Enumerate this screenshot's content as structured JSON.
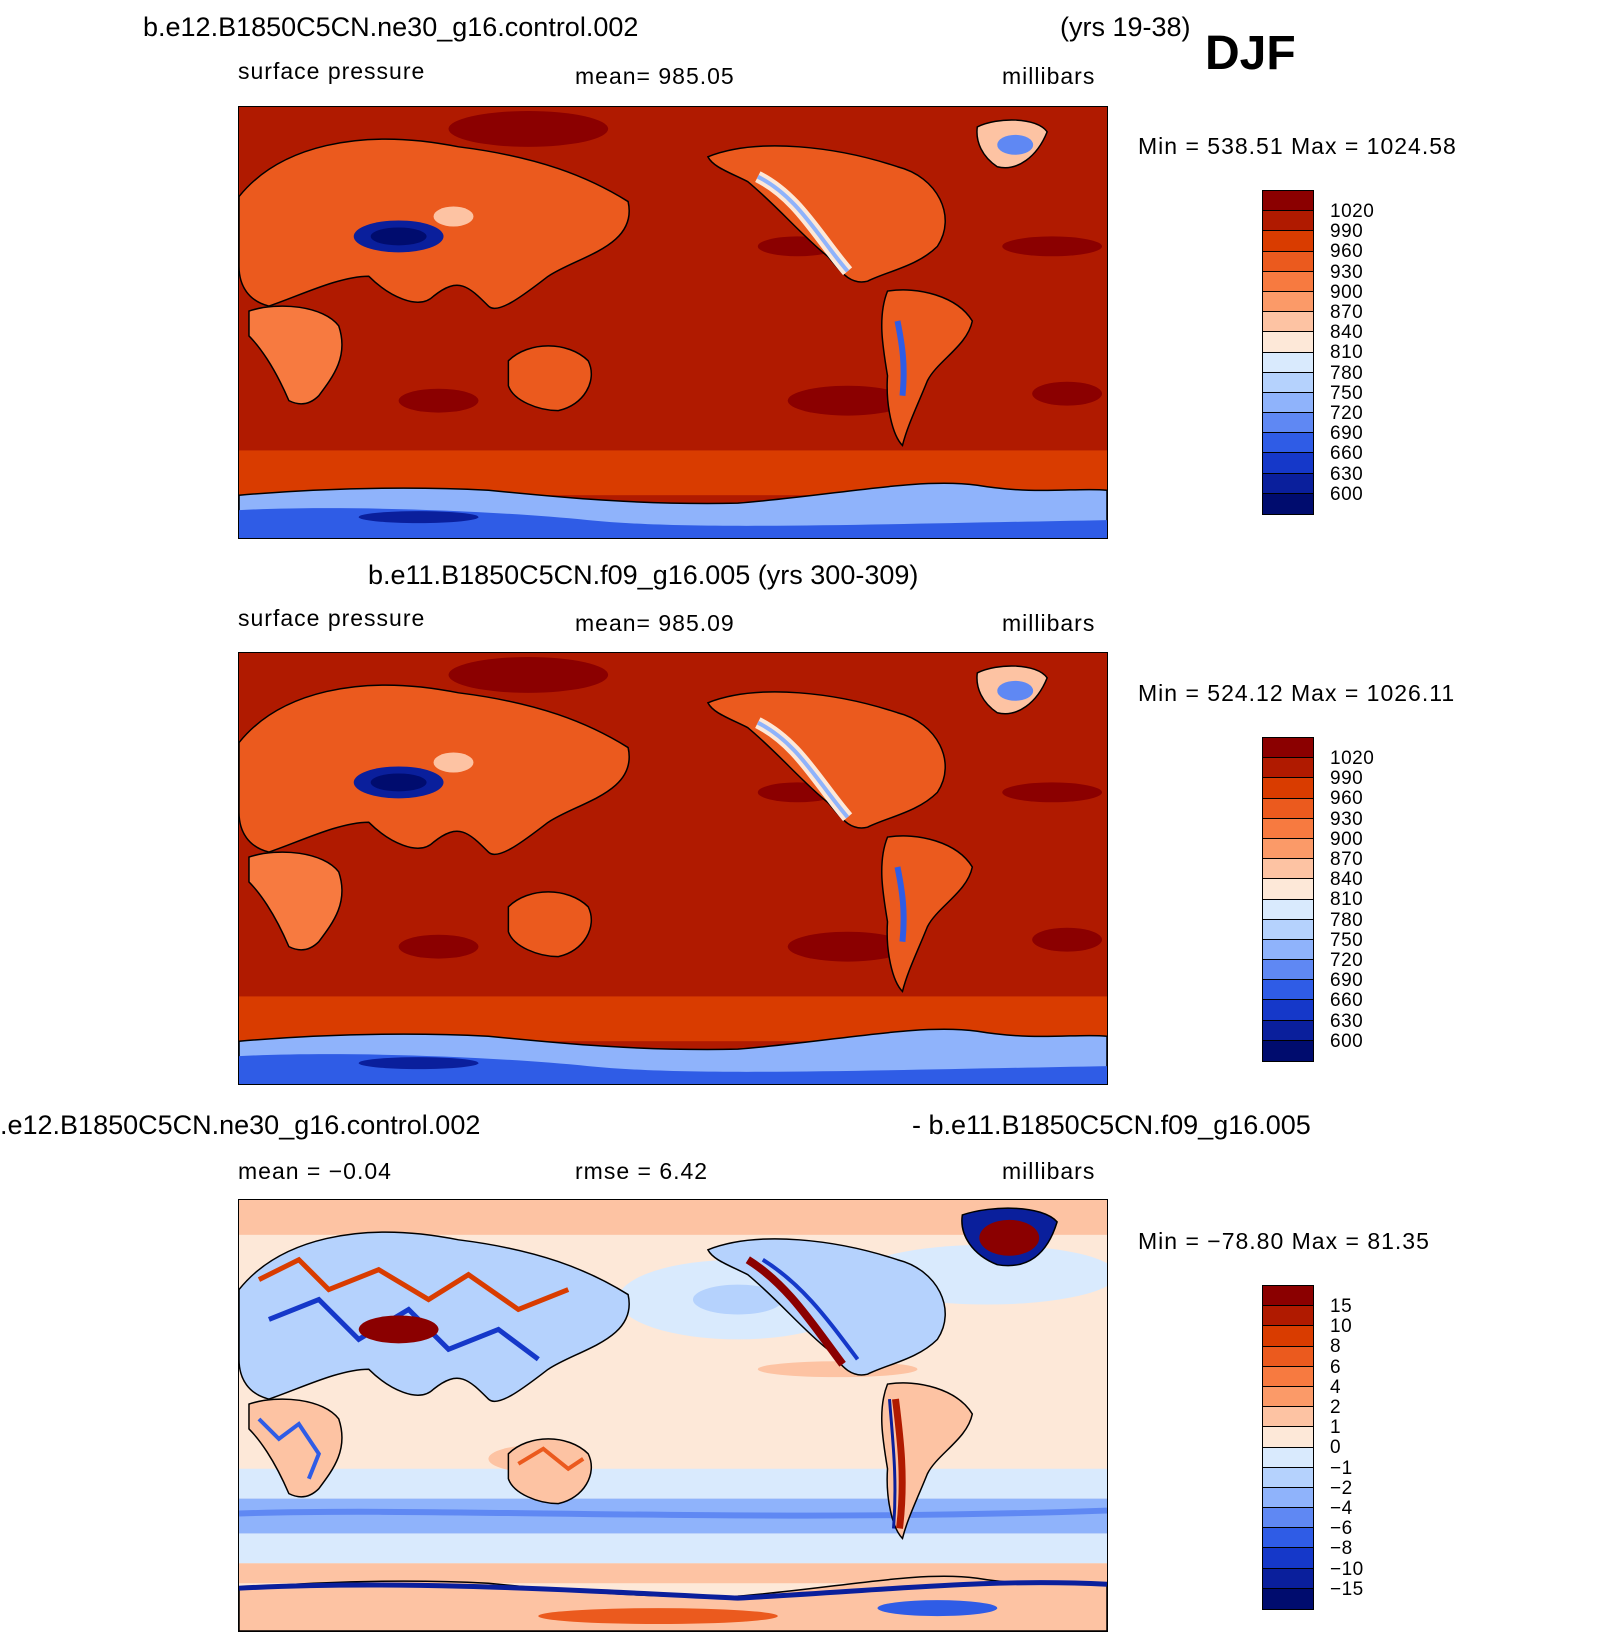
{
  "season": "DJF",
  "panels": [
    {
      "title": "b.e12.B1850C5CN.ne30_g16.control.002",
      "title_suffix": "(yrs 19-38)",
      "left_label": "surface pressure",
      "center_label": "mean=  985.05",
      "units": "millibars",
      "minmax": "Min  =  538.51  Max  =  1024.58",
      "colorbar_labels": [
        "1020",
        "990",
        "960",
        "930",
        "900",
        "870",
        "840",
        "810",
        "780",
        "750",
        "720",
        "690",
        "660",
        "630",
        "600"
      ]
    },
    {
      "title": "b.e11.B1850C5CN.f09_g16.005 (yrs 300-309)",
      "left_label": "surface pressure",
      "center_label": "mean=  985.09",
      "units": "millibars",
      "minmax": "Min  =  524.12  Max  =  1026.11",
      "colorbar_labels": [
        "1020",
        "990",
        "960",
        "930",
        "900",
        "870",
        "840",
        "810",
        "780",
        "750",
        "720",
        "690",
        "660",
        "630",
        "600"
      ]
    },
    {
      "title": ".e12.B1850C5CN.ne30_g16.control.002",
      "title_right": "- b.e11.B1850C5CN.f09_g16.005",
      "left_label": "mean  =    −0.04",
      "center_label": "rmse  =      6.42",
      "units": "millibars",
      "minmax": "Min  =  −78.80  Max  =    81.35",
      "colorbar_labels": [
        "15",
        "10",
        "8",
        "6",
        "4",
        "2",
        "1",
        "0",
        "−1",
        "−2",
        "−4",
        "−6",
        "−8",
        "−10",
        "−15"
      ]
    }
  ],
  "colors": {
    "pressure_scale": [
      "#8b0000",
      "#b01a00",
      "#d93c00",
      "#eb5a1e",
      "#f77a40",
      "#fb9a68",
      "#fdc3a3",
      "#fde8d8",
      "#d9eafd",
      "#b5d2fd",
      "#8fb3fb",
      "#5f88f3",
      "#2f5ce6",
      "#1538c9",
      "#0a1f9c",
      "#000c6e"
    ],
    "diff_scale": [
      "#8b0000",
      "#b01a00",
      "#d93c00",
      "#eb5a1e",
      "#f77a40",
      "#fb9a68",
      "#fdc3a3",
      "#fde8d8",
      "#d9eafd",
      "#b5d2fd",
      "#8fb3fb",
      "#5f88f3",
      "#2f5ce6",
      "#1538c9",
      "#0a1f9c",
      "#000c6e"
    ]
  }
}
